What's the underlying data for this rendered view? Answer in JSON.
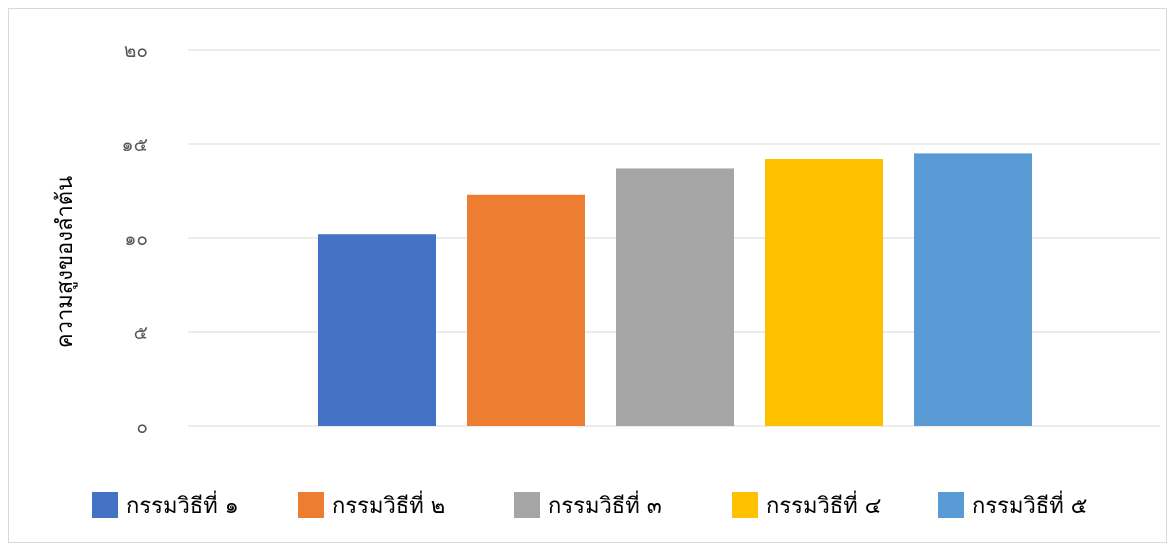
{
  "chart_data": {
    "type": "bar",
    "title": "",
    "xlabel": "",
    "ylabel": "ความสูงของลำต้น",
    "ylim": [
      0,
      20
    ],
    "yticks": [
      0,
      5,
      10,
      15,
      20
    ],
    "ytick_labels": [
      "๐",
      "๕",
      "๑๐",
      "๑๕",
      "๒๐"
    ],
    "grid": true,
    "legend_position": "bottom",
    "series": [
      {
        "name": "กรรมวิธีที่ ๑",
        "value": 10.2,
        "color": "#4472C4"
      },
      {
        "name": "กรรมวิธีที่ ๒",
        "value": 12.3,
        "color": "#ED7D31"
      },
      {
        "name": "กรรมวิธีที่ ๓",
        "value": 13.7,
        "color": "#A5A5A5"
      },
      {
        "name": "กรรมวิธีที่ ๔",
        "value": 14.2,
        "color": "#FFC000"
      },
      {
        "name": "กรรมวิธีที่ ๕",
        "value": 14.5,
        "color": "#5B9BD5"
      }
    ]
  }
}
